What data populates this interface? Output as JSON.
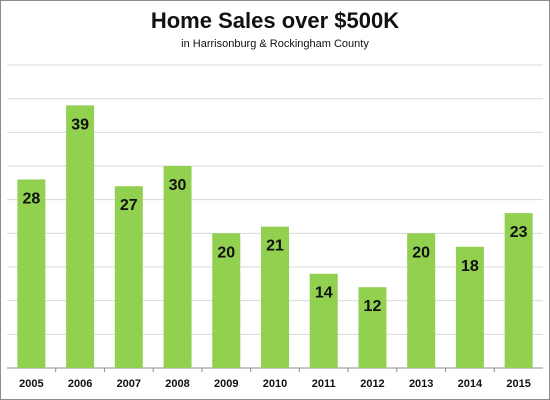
{
  "chart_data": {
    "type": "bar",
    "title": "Home Sales over $500K",
    "subtitle": "in Harrisonburg & Rockingham County",
    "categories": [
      "2005",
      "2006",
      "2007",
      "2008",
      "2009",
      "2010",
      "2011",
      "2012",
      "2013",
      "2014",
      "2015"
    ],
    "values": [
      28,
      39,
      27,
      30,
      20,
      21,
      14,
      12,
      20,
      18,
      23
    ],
    "xlabel": "",
    "ylabel": "",
    "ylim": [
      0,
      45
    ],
    "grid": true,
    "data_labels": true,
    "colors": {
      "bar": "#92d050",
      "grid": "#d9d9d9",
      "axis": "#8c8c8c"
    }
  }
}
